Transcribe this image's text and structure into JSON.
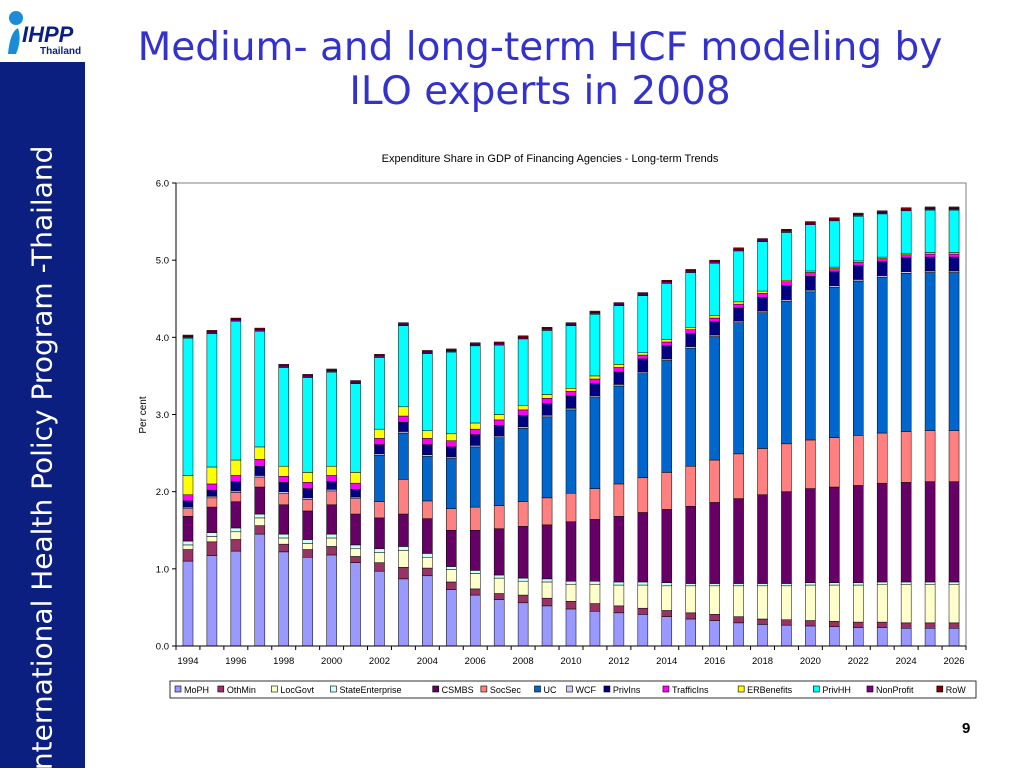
{
  "slide": {
    "title": "Medium- and long-term HCF modeling by ILO experts in 2008",
    "sidebar_text": "International Health Policy Program -Thailand",
    "logo_text": "IHPP",
    "logo_sub": "Thailand",
    "page_number": "9"
  },
  "colors": {
    "sidebar": "#0b1f80",
    "title": "#3333cc"
  },
  "chart_data": {
    "type": "bar",
    "stacked": true,
    "title": "Expenditure Share in GDP of Financing Agencies - Long-term Trends",
    "ylabel": "Per cent",
    "xlabel": "",
    "ylim": [
      0,
      6
    ],
    "yticks": [
      "0.0",
      "1.0",
      "2.0",
      "3.0",
      "4.0",
      "5.0",
      "6.0"
    ],
    "grid": false,
    "legend_position": "bottom",
    "categories": [
      1994,
      1995,
      1996,
      1997,
      1998,
      1999,
      2000,
      2001,
      2002,
      2003,
      2004,
      2005,
      2006,
      2007,
      2008,
      2009,
      2010,
      2011,
      2012,
      2013,
      2014,
      2015,
      2016,
      2017,
      2018,
      2019,
      2020,
      2021,
      2022,
      2023,
      2024,
      2025,
      2026
    ],
    "xtick_labels": [
      "1994",
      "1996",
      "1998",
      "2000",
      "2002",
      "2004",
      "2006",
      "2008",
      "2010",
      "2012",
      "2014",
      "2016",
      "2018",
      "2020",
      "2022",
      "2024",
      "2026"
    ],
    "series": [
      {
        "name": "MoPH",
        "color": "#9999ff",
        "values": [
          1.1,
          1.17,
          1.23,
          1.45,
          1.22,
          1.15,
          1.18,
          1.08,
          0.97,
          0.87,
          0.91,
          0.73,
          0.66,
          0.6,
          0.56,
          0.52,
          0.48,
          0.45,
          0.43,
          0.41,
          0.38,
          0.35,
          0.33,
          0.3,
          0.28,
          0.27,
          0.26,
          0.25,
          0.24,
          0.24,
          0.23,
          0.23,
          0.23
        ]
      },
      {
        "name": "OthMin",
        "color": "#993366",
        "values": [
          0.15,
          0.18,
          0.15,
          0.11,
          0.1,
          0.1,
          0.11,
          0.08,
          0.11,
          0.15,
          0.1,
          0.1,
          0.08,
          0.08,
          0.1,
          0.1,
          0.1,
          0.1,
          0.09,
          0.08,
          0.08,
          0.08,
          0.08,
          0.08,
          0.07,
          0.07,
          0.07,
          0.07,
          0.07,
          0.07,
          0.07,
          0.07,
          0.07
        ]
      },
      {
        "name": "LocGovt",
        "color": "#ffffcc",
        "values": [
          0.06,
          0.07,
          0.1,
          0.1,
          0.08,
          0.08,
          0.11,
          0.1,
          0.13,
          0.22,
          0.14,
          0.16,
          0.2,
          0.2,
          0.18,
          0.21,
          0.22,
          0.25,
          0.27,
          0.3,
          0.32,
          0.35,
          0.37,
          0.4,
          0.43,
          0.44,
          0.46,
          0.47,
          0.48,
          0.49,
          0.5,
          0.5,
          0.5
        ]
      },
      {
        "name": "StateEnterprise",
        "color": "#ccffff",
        "values": [
          0.05,
          0.05,
          0.05,
          0.05,
          0.05,
          0.05,
          0.05,
          0.05,
          0.05,
          0.05,
          0.05,
          0.04,
          0.04,
          0.04,
          0.04,
          0.04,
          0.04,
          0.04,
          0.04,
          0.04,
          0.04,
          0.03,
          0.03,
          0.03,
          0.03,
          0.03,
          0.03,
          0.03,
          0.03,
          0.03,
          0.03,
          0.03,
          0.03
        ]
      },
      {
        "name": "CSMBS",
        "color": "#660066",
        "values": [
          0.32,
          0.33,
          0.34,
          0.35,
          0.38,
          0.37,
          0.38,
          0.4,
          0.4,
          0.42,
          0.45,
          0.47,
          0.52,
          0.6,
          0.67,
          0.7,
          0.77,
          0.8,
          0.85,
          0.9,
          0.95,
          1.0,
          1.05,
          1.1,
          1.15,
          1.19,
          1.22,
          1.24,
          1.26,
          1.28,
          1.29,
          1.3,
          1.3
        ]
      },
      {
        "name": "SocSec",
        "color": "#ff8080",
        "values": [
          0.1,
          0.12,
          0.12,
          0.13,
          0.15,
          0.15,
          0.18,
          0.2,
          0.21,
          0.45,
          0.23,
          0.28,
          0.3,
          0.3,
          0.32,
          0.35,
          0.37,
          0.4,
          0.42,
          0.45,
          0.48,
          0.52,
          0.55,
          0.58,
          0.6,
          0.62,
          0.63,
          0.64,
          0.65,
          0.65,
          0.66,
          0.66,
          0.66
        ]
      },
      {
        "name": "UC",
        "color": "#0066cc",
        "values": [
          0,
          0,
          0,
          0,
          0,
          0,
          0,
          0,
          0.6,
          0.6,
          0.58,
          0.65,
          0.78,
          0.88,
          0.95,
          1.05,
          1.08,
          1.18,
          1.27,
          1.35,
          1.45,
          1.53,
          1.6,
          1.7,
          1.76,
          1.85,
          1.92,
          1.95,
          2.0,
          2.02,
          2.05,
          2.05,
          2.05
        ]
      },
      {
        "name": "WCF",
        "color": "#ccccff",
        "values": [
          0.02,
          0.02,
          0.02,
          0.02,
          0.02,
          0.02,
          0.02,
          0.02,
          0.02,
          0.02,
          0.02,
          0.02,
          0.02,
          0.02,
          0.02,
          0.02,
          0.02,
          0.02,
          0.02,
          0.02,
          0.02,
          0.02,
          0.02,
          0.02,
          0.02,
          0.02,
          0.02,
          0.02,
          0.02,
          0.02,
          0.02,
          0.02,
          0.02
        ]
      },
      {
        "name": "PrivIns",
        "color": "#000080",
        "values": [
          0.08,
          0.08,
          0.12,
          0.12,
          0.12,
          0.12,
          0.1,
          0.1,
          0.12,
          0.12,
          0.13,
          0.13,
          0.14,
          0.14,
          0.15,
          0.15,
          0.16,
          0.16,
          0.16,
          0.17,
          0.17,
          0.17,
          0.17,
          0.17,
          0.18,
          0.18,
          0.18,
          0.18,
          0.18,
          0.18,
          0.18,
          0.18,
          0.18
        ]
      },
      {
        "name": "TrafficIns",
        "color": "#ff00ff",
        "values": [
          0.08,
          0.08,
          0.08,
          0.09,
          0.08,
          0.08,
          0.08,
          0.08,
          0.08,
          0.08,
          0.08,
          0.08,
          0.07,
          0.07,
          0.07,
          0.07,
          0.06,
          0.06,
          0.06,
          0.05,
          0.05,
          0.05,
          0.05,
          0.05,
          0.05,
          0.05,
          0.05,
          0.04,
          0.04,
          0.04,
          0.04,
          0.04,
          0.04
        ]
      },
      {
        "name": "ERBenefits",
        "color": "#ffff00",
        "values": [
          0.25,
          0.22,
          0.2,
          0.16,
          0.13,
          0.13,
          0.12,
          0.14,
          0.12,
          0.12,
          0.1,
          0.09,
          0.08,
          0.07,
          0.06,
          0.05,
          0.04,
          0.04,
          0.04,
          0.03,
          0.03,
          0.03,
          0.03,
          0.03,
          0.03,
          0.02,
          0.02,
          0.02,
          0.02,
          0.02,
          0.02,
          0.02,
          0.02
        ]
      },
      {
        "name": "PrivHH",
        "color": "#00ffff",
        "values": [
          1.78,
          1.73,
          1.8,
          1.5,
          1.28,
          1.23,
          1.22,
          1.15,
          0.93,
          1.05,
          1.0,
          1.06,
          1.0,
          0.9,
          0.86,
          0.83,
          0.81,
          0.8,
          0.76,
          0.74,
          0.73,
          0.71,
          0.68,
          0.66,
          0.64,
          0.62,
          0.6,
          0.6,
          0.58,
          0.56,
          0.55,
          0.55,
          0.55
        ]
      },
      {
        "name": "NonProfit",
        "color": "#800080",
        "values": [
          0.02,
          0.02,
          0.02,
          0.02,
          0.02,
          0.02,
          0.02,
          0.02,
          0.02,
          0.02,
          0.02,
          0.02,
          0.02,
          0.02,
          0.02,
          0.02,
          0.02,
          0.02,
          0.02,
          0.02,
          0.02,
          0.02,
          0.02,
          0.02,
          0.02,
          0.02,
          0.02,
          0.02,
          0.02,
          0.02,
          0.02,
          0.02,
          0.02
        ]
      },
      {
        "name": "RoW",
        "color": "#800000",
        "values": [
          0.02,
          0.02,
          0.02,
          0.02,
          0.02,
          0.02,
          0.02,
          0.02,
          0.02,
          0.02,
          0.02,
          0.02,
          0.02,
          0.02,
          0.02,
          0.02,
          0.02,
          0.02,
          0.02,
          0.02,
          0.02,
          0.02,
          0.02,
          0.02,
          0.02,
          0.02,
          0.02,
          0.02,
          0.02,
          0.02,
          0.02,
          0.02,
          0.02
        ]
      }
    ]
  }
}
